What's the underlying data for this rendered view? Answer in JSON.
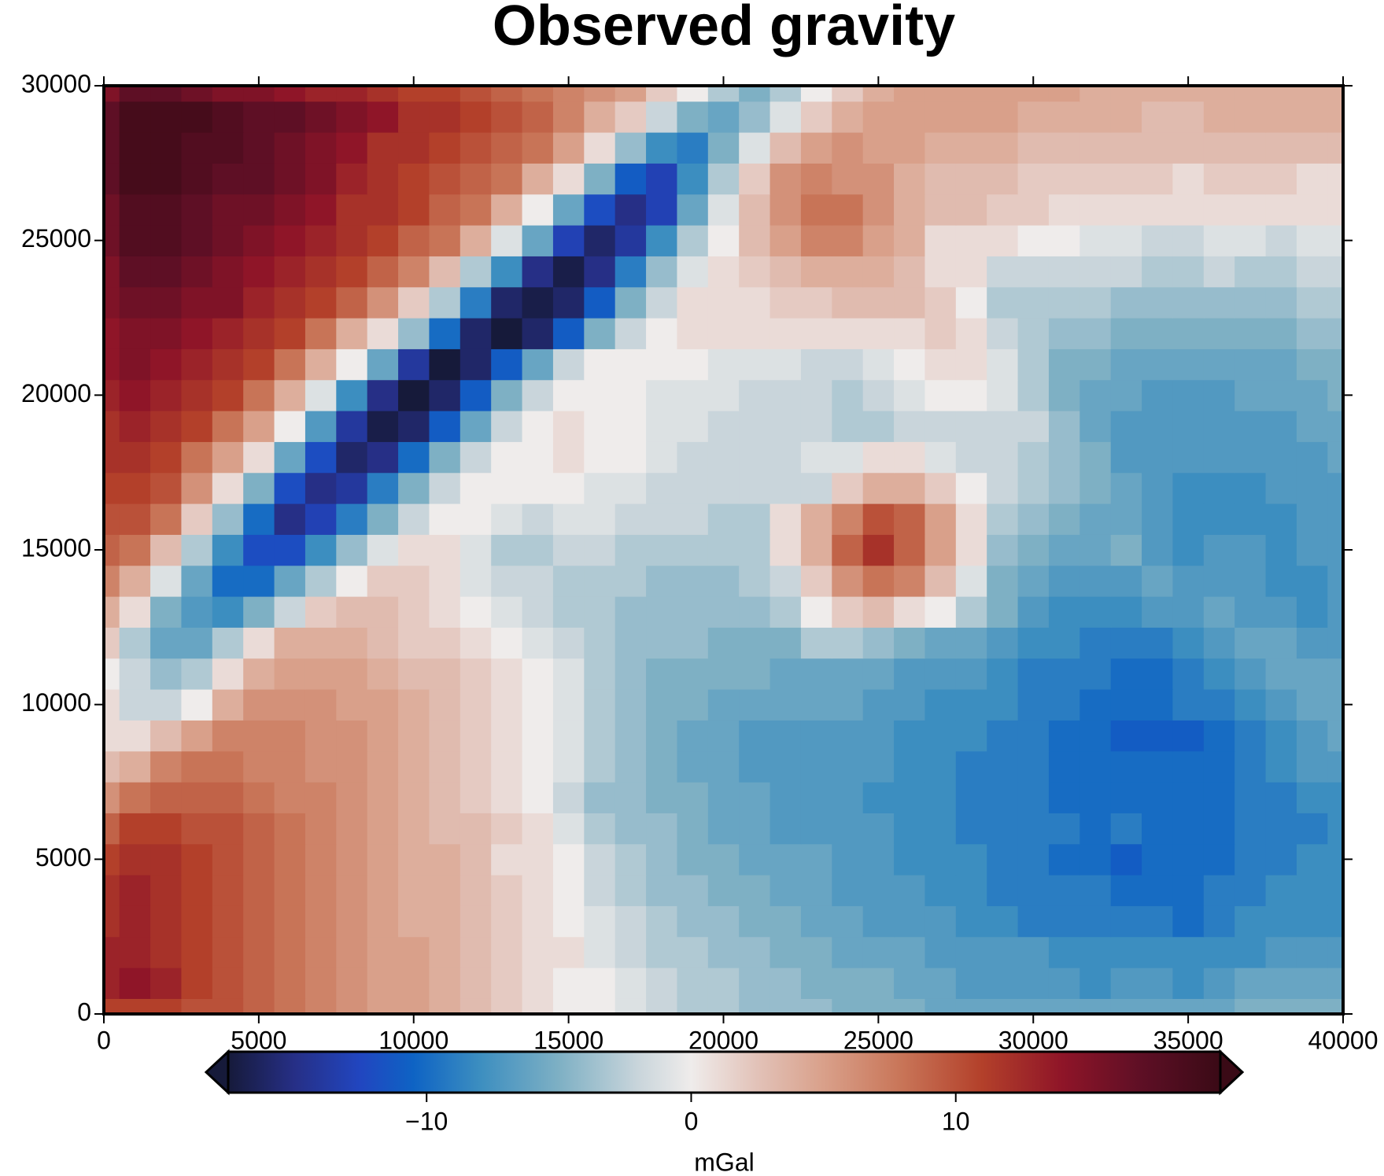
{
  "chart_data": {
    "type": "heatmap",
    "title": "Observed gravity",
    "x": [
      0,
      1000,
      2000,
      3000,
      4000,
      5000,
      6000,
      7000,
      8000,
      9000,
      10000,
      11000,
      12000,
      13000,
      14000,
      15000,
      16000,
      17000,
      18000,
      19000,
      20000,
      21000,
      22000,
      23000,
      24000,
      25000,
      26000,
      27000,
      28000,
      29000,
      30000,
      31000,
      32000,
      33000,
      34000,
      35000,
      36000,
      37000,
      38000,
      39000,
      40000
    ],
    "y": [
      0,
      1000,
      2000,
      3000,
      4000,
      5000,
      6000,
      7000,
      8000,
      9000,
      10000,
      11000,
      12000,
      13000,
      14000,
      15000,
      16000,
      17000,
      18000,
      19000,
      20000,
      21000,
      22000,
      23000,
      24000,
      25000,
      26000,
      27000,
      28000,
      29000,
      30000
    ],
    "z": [
      [
        11,
        11,
        11,
        10,
        10,
        9,
        8,
        7,
        6,
        5,
        5,
        4,
        3,
        2,
        1,
        0,
        0,
        -1,
        -2,
        -3,
        -3,
        -4,
        -4,
        -4,
        -5,
        -5,
        -5,
        -6,
        -6,
        -6,
        -6,
        -6,
        -6,
        -6,
        -6,
        -6,
        -6,
        -5,
        -5,
        -5,
        -5
      ],
      [
        13,
        14,
        13,
        11,
        10,
        9,
        8,
        7,
        6,
        5,
        5,
        4,
        3,
        2,
        1,
        0,
        0,
        -1,
        -2,
        -3,
        -3,
        -4,
        -4,
        -5,
        -5,
        -5,
        -6,
        -6,
        -7,
        -7,
        -7,
        -7,
        -8,
        -7,
        -7,
        -8,
        -7,
        -6,
        -6,
        -6,
        -6
      ],
      [
        13,
        13,
        12,
        11,
        10,
        9,
        8,
        7,
        6,
        5,
        5,
        4,
        3,
        2,
        1,
        1,
        -1,
        -2,
        -3,
        -3,
        -4,
        -4,
        -5,
        -5,
        -6,
        -6,
        -6,
        -7,
        -7,
        -7,
        -7,
        -8,
        -8,
        -8,
        -8,
        -8,
        -8,
        -8,
        -7,
        -7,
        -7
      ],
      [
        12,
        13,
        12,
        11,
        10,
        9,
        8,
        7,
        6,
        5,
        4,
        4,
        3,
        2,
        1,
        0,
        -1,
        -2,
        -3,
        -4,
        -4,
        -5,
        -5,
        -6,
        -6,
        -7,
        -7,
        -7,
        -8,
        -8,
        -9,
        -9,
        -9,
        -9,
        -9,
        -10,
        -9,
        -8,
        -8,
        -8,
        -8
      ],
      [
        12,
        13,
        12,
        11,
        10,
        9,
        8,
        7,
        6,
        5,
        4,
        4,
        3,
        2,
        1,
        0,
        -2,
        -3,
        -4,
        -4,
        -5,
        -5,
        -6,
        -6,
        -7,
        -7,
        -7,
        -8,
        -8,
        -9,
        -9,
        -9,
        -9,
        -10,
        -10,
        -10,
        -9,
        -9,
        -8,
        -8,
        -8
      ],
      [
        11,
        12,
        12,
        11,
        10,
        9,
        8,
        7,
        6,
        5,
        4,
        4,
        3,
        1,
        1,
        0,
        -2,
        -3,
        -4,
        -5,
        -5,
        -6,
        -6,
        -6,
        -7,
        -7,
        -8,
        -8,
        -8,
        -9,
        -9,
        -10,
        -10,
        -11,
        -10,
        -10,
        -10,
        -9,
        -9,
        -8,
        -8
      ],
      [
        9,
        11,
        11,
        10,
        10,
        9,
        8,
        7,
        6,
        5,
        4,
        3,
        3,
        2,
        1,
        -1,
        -3,
        -4,
        -4,
        -5,
        -6,
        -6,
        -7,
        -7,
        -7,
        -7,
        -8,
        -8,
        -9,
        -9,
        -9,
        -9,
        -10,
        -9,
        -10,
        -10,
        -10,
        -9,
        -9,
        -9,
        -8
      ],
      [
        6,
        8,
        9,
        9,
        9,
        8,
        7,
        7,
        6,
        5,
        4,
        3,
        2,
        1,
        0,
        -2,
        -4,
        -4,
        -5,
        -5,
        -6,
        -6,
        -7,
        -7,
        -7,
        -8,
        -8,
        -8,
        -9,
        -9,
        -9,
        -10,
        -10,
        -10,
        -10,
        -10,
        -10,
        -9,
        -9,
        -8,
        -8
      ],
      [
        3,
        4,
        7,
        8,
        8,
        7,
        7,
        6,
        6,
        5,
        4,
        3,
        2,
        1,
        0,
        -1,
        -3,
        -4,
        -5,
        -6,
        -6,
        -7,
        -7,
        -7,
        -7,
        -7,
        -8,
        -8,
        -9,
        -9,
        -9,
        -10,
        -10,
        -10,
        -10,
        -10,
        -10,
        -9,
        -8,
        -7,
        -7
      ],
      [
        1,
        1,
        3,
        5,
        7,
        7,
        7,
        6,
        6,
        5,
        4,
        3,
        2,
        1,
        0,
        -1,
        -3,
        -4,
        -5,
        -6,
        -6,
        -7,
        -7,
        -7,
        -7,
        -7,
        -8,
        -8,
        -8,
        -9,
        -9,
        -10,
        -10,
        -11,
        -11,
        -11,
        -10,
        -9,
        -8,
        -7,
        -6
      ],
      [
        1,
        -2,
        -2,
        0,
        4,
        6,
        6,
        6,
        5,
        5,
        4,
        3,
        2,
        1,
        0,
        -1,
        -3,
        -4,
        -5,
        -5,
        -6,
        -6,
        -6,
        -6,
        -6,
        -7,
        -7,
        -8,
        -8,
        -8,
        -9,
        -9,
        -10,
        -10,
        -10,
        -9,
        -9,
        -8,
        -7,
        -6,
        -6
      ],
      [
        0,
        -2,
        -4,
        -3,
        1,
        4,
        5,
        5,
        5,
        4,
        3,
        3,
        2,
        1,
        0,
        -1,
        -3,
        -4,
        -5,
        -5,
        -5,
        -5,
        -6,
        -6,
        -6,
        -6,
        -7,
        -7,
        -7,
        -8,
        -9,
        -9,
        -9,
        -10,
        -10,
        -9,
        -8,
        -7,
        -6,
        -6,
        -6
      ],
      [
        2,
        -3,
        -6,
        -6,
        -3,
        1,
        4,
        4,
        4,
        3,
        2,
        2,
        1,
        0,
        -1,
        -2,
        -3,
        -4,
        -4,
        -4,
        -5,
        -5,
        -5,
        -3,
        -3,
        -4,
        -5,
        -6,
        -6,
        -7,
        -8,
        -8,
        -9,
        -9,
        -9,
        -8,
        -7,
        -6,
        -6,
        -7,
        -7
      ],
      [
        4,
        1,
        -5,
        -7,
        -8,
        -5,
        -2,
        2,
        3,
        3,
        2,
        1,
        0,
        -1,
        -2,
        -3,
        -3,
        -4,
        -4,
        -4,
        -4,
        -4,
        -3,
        0,
        2,
        3,
        1,
        0,
        -3,
        -5,
        -7,
        -8,
        -8,
        -8,
        -7,
        -7,
        -6,
        -7,
        -7,
        -8,
        -7
      ],
      [
        7,
        4,
        -1,
        -6,
        -10,
        -10,
        -6,
        -3,
        0,
        2,
        2,
        1,
        -1,
        -2,
        -2,
        -3,
        -3,
        -3,
        -4,
        -4,
        -4,
        -3,
        -2,
        2,
        6,
        8,
        7,
        3,
        -1,
        -5,
        -6,
        -7,
        -7,
        -7,
        -6,
        -7,
        -7,
        -7,
        -8,
        -8,
        -7
      ],
      [
        9,
        8,
        3,
        -3,
        -8,
        -12,
        -12,
        -8,
        -4,
        -1,
        1,
        1,
        -1,
        -3,
        -3,
        -2,
        -2,
        -3,
        -3,
        -3,
        -3,
        -3,
        1,
        4,
        9,
        12,
        9,
        5,
        1,
        -4,
        -5,
        -6,
        -6,
        -5,
        -7,
        -8,
        -7,
        -7,
        -8,
        -7,
        -7
      ],
      [
        10,
        10,
        8,
        2,
        -4,
        -10,
        -15,
        -13,
        -9,
        -5,
        -2,
        0,
        0,
        -1,
        -2,
        -1,
        -1,
        -2,
        -2,
        -2,
        -3,
        -3,
        1,
        4,
        7,
        10,
        9,
        5,
        1,
        -3,
        -4,
        -5,
        -6,
        -6,
        -7,
        -8,
        -8,
        -8,
        -8,
        -7,
        -7
      ],
      [
        11,
        11,
        10,
        6,
        1,
        -5,
        -12,
        -15,
        -14,
        -9,
        -5,
        -2,
        0,
        0,
        0,
        0,
        -1,
        -1,
        -2,
        -2,
        -2,
        -2,
        -2,
        -2,
        2,
        4,
        4,
        2,
        0,
        -2,
        -3,
        -4,
        -5,
        -6,
        -7,
        -8,
        -8,
        -8,
        -7,
        -7,
        -7
      ],
      [
        12,
        12,
        11,
        8,
        5,
        1,
        -6,
        -12,
        -16,
        -15,
        -10,
        -5,
        -2,
        0,
        0,
        1,
        0,
        0,
        -1,
        -2,
        -2,
        -2,
        -2,
        -1,
        -1,
        1,
        1,
        -1,
        -2,
        -2,
        -3,
        -4,
        -5,
        -7,
        -7,
        -7,
        -7,
        -7,
        -7,
        -7,
        -6
      ],
      [
        12,
        13,
        12,
        11,
        8,
        5,
        0,
        -7,
        -14,
        -17,
        -16,
        -11,
        -6,
        -2,
        0,
        1,
        0,
        0,
        -1,
        -1,
        -2,
        -2,
        -2,
        -2,
        -3,
        -3,
        -2,
        -2,
        -2,
        -2,
        -2,
        -4,
        -6,
        -7,
        -7,
        -7,
        -7,
        -7,
        -7,
        -6,
        -6
      ],
      [
        13,
        14,
        13,
        12,
        11,
        8,
        4,
        -1,
        -8,
        -15,
        -18,
        -16,
        -11,
        -5,
        -2,
        0,
        0,
        0,
        -1,
        -1,
        -1,
        -2,
        -2,
        -2,
        -3,
        -2,
        -1,
        0,
        0,
        -1,
        -3,
        -5,
        -6,
        -6,
        -7,
        -7,
        -7,
        -6,
        -6,
        -6,
        -5
      ],
      [
        14,
        15,
        14,
        13,
        12,
        11,
        8,
        4,
        0,
        -6,
        -14,
        -18,
        -16,
        -11,
        -6,
        -2,
        0,
        0,
        0,
        0,
        -1,
        -1,
        -1,
        -2,
        -2,
        -1,
        0,
        1,
        1,
        -1,
        -3,
        -5,
        -5,
        -6,
        -6,
        -6,
        -6,
        -6,
        -6,
        -5,
        -5
      ],
      [
        14,
        15,
        15,
        14,
        13,
        12,
        11,
        8,
        4,
        1,
        -4,
        -10,
        -16,
        -18,
        -16,
        -11,
        -5,
        -2,
        0,
        1,
        1,
        1,
        1,
        1,
        1,
        1,
        1,
        2,
        1,
        -2,
        -3,
        -4,
        -4,
        -5,
        -5,
        -5,
        -5,
        -5,
        -5,
        -4,
        -4
      ],
      [
        15,
        16,
        16,
        15,
        15,
        13,
        12,
        11,
        9,
        6,
        2,
        -3,
        -9,
        -16,
        -17,
        -16,
        -11,
        -5,
        -2,
        1,
        1,
        1,
        2,
        2,
        3,
        3,
        3,
        2,
        0,
        -3,
        -3,
        -3,
        -3,
        -4,
        -4,
        -4,
        -4,
        -4,
        -4,
        -3,
        -3
      ],
      [
        15,
        17,
        17,
        16,
        15,
        14,
        13,
        12,
        11,
        9,
        7,
        3,
        -3,
        -8,
        -15,
        -17,
        -15,
        -9,
        -4,
        -1,
        1,
        2,
        3,
        4,
        4,
        4,
        3,
        1,
        1,
        -2,
        -2,
        -2,
        -2,
        -2,
        -3,
        -3,
        -2,
        -3,
        -3,
        -2,
        -2
      ],
      [
        16,
        18,
        18,
        17,
        16,
        15,
        14,
        13,
        12,
        11,
        9,
        8,
        4,
        -1,
        -6,
        -13,
        -16,
        -14,
        -8,
        -3,
        0,
        3,
        5,
        7,
        7,
        5,
        4,
        1,
        1,
        1,
        0,
        0,
        -1,
        -1,
        -2,
        -2,
        -1,
        -1,
        -2,
        -1,
        -1
      ],
      [
        16,
        18,
        18,
        17,
        16,
        16,
        15,
        14,
        12,
        12,
        11,
        9,
        8,
        4,
        0,
        -6,
        -12,
        -15,
        -13,
        -6,
        -1,
        3,
        6,
        8,
        8,
        6,
        4,
        3,
        3,
        2,
        2,
        1,
        1,
        1,
        1,
        1,
        1,
        1,
        1,
        1,
        1
      ],
      [
        17,
        19,
        19,
        18,
        17,
        17,
        16,
        15,
        13,
        12,
        11,
        10,
        9,
        8,
        4,
        1,
        -5,
        -11,
        -13,
        -8,
        -3,
        2,
        6,
        7,
        6,
        6,
        4,
        3,
        3,
        3,
        2,
        2,
        2,
        2,
        2,
        1,
        2,
        2,
        2,
        1,
        1
      ],
      [
        17,
        19,
        19,
        18,
        18,
        17,
        16,
        15,
        14,
        12,
        12,
        11,
        10,
        9,
        8,
        5,
        1,
        -4,
        -8,
        -9,
        -5,
        -1,
        3,
        5,
        6,
        5,
        5,
        4,
        4,
        4,
        3,
        3,
        3,
        3,
        3,
        3,
        3,
        3,
        3,
        3,
        3
      ],
      [
        17,
        19,
        19,
        19,
        18,
        17,
        17,
        16,
        15,
        14,
        12,
        12,
        11,
        10,
        9,
        7,
        4,
        2,
        -2,
        -5,
        -6,
        -4,
        -1,
        2,
        4,
        5,
        5,
        5,
        5,
        5,
        4,
        4,
        4,
        4,
        3,
        3,
        4,
        4,
        4,
        4,
        4
      ],
      [
        15,
        17,
        17,
        16,
        15,
        15,
        14,
        13,
        13,
        12,
        11,
        11,
        10,
        9,
        8,
        7,
        6,
        5,
        2,
        0,
        -3,
        -5,
        -3,
        0,
        2,
        4,
        5,
        5,
        5,
        5,
        5,
        5,
        4,
        4,
        4,
        4,
        4,
        4,
        4,
        4,
        4
      ]
    ],
    "xlim": [
      0,
      40000
    ],
    "ylim": [
      0,
      30000
    ],
    "xticks": [
      0,
      5000,
      10000,
      15000,
      20000,
      25000,
      30000,
      35000,
      40000
    ],
    "yticks": [
      0,
      5000,
      10000,
      15000,
      20000,
      25000,
      30000
    ],
    "colorbar": {
      "label": "mGal",
      "zlim": [
        -17.5,
        20
      ],
      "zticks": [
        {
          "value": -10,
          "label": "−10"
        },
        0,
        10
      ],
      "colormap": [
        {
          "value": -17.5,
          "color": "#161a3a"
        },
        {
          "value": -15,
          "color": "#262f86"
        },
        {
          "value": -12.5,
          "color": "#2146c0"
        },
        {
          "value": -10.5,
          "color": "#0e63c4"
        },
        {
          "value": -8,
          "color": "#3c8ec0"
        },
        {
          "value": -5,
          "color": "#7eb0c4"
        },
        {
          "value": -2,
          "color": "#c9d5db"
        },
        {
          "value": 0,
          "color": "#efeceb"
        },
        {
          "value": 2.5,
          "color": "#e2c2b8"
        },
        {
          "value": 5,
          "color": "#d9a08a"
        },
        {
          "value": 8,
          "color": "#c87457"
        },
        {
          "value": 11,
          "color": "#b3402a"
        },
        {
          "value": 14,
          "color": "#8f1528"
        },
        {
          "value": 17,
          "color": "#5e0f25"
        },
        {
          "value": 20,
          "color": "#3a0a16"
        }
      ]
    }
  }
}
